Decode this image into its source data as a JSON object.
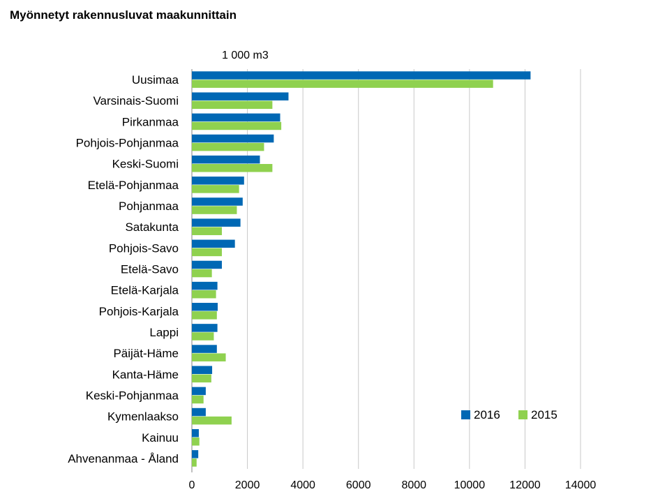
{
  "chart_data": {
    "type": "bar",
    "orientation": "horizontal",
    "title": "Myönnetyt rakennusluvat maakunnittain",
    "unit_label": "1 000 m3",
    "categories": [
      "Uusimaa",
      "Varsinais-Suomi",
      "Pirkanmaa",
      "Pohjois-Pohjanmaa",
      "Keski-Suomi",
      "Etelä-Pohjanmaa",
      "Pohjanmaa",
      "Satakunta",
      "Pohjois-Savo",
      "Etelä-Savo",
      "Etelä-Karjala",
      "Pohjois-Karjala",
      "Lappi",
      "Päijät-Häme",
      "Kanta-Häme",
      "Keski-Pohjanmaa",
      "Kymenlaakso",
      "Kainuu",
      "Ahvenanmaa - Åland"
    ],
    "series": [
      {
        "name": "2016",
        "color": "#0068b4",
        "values": [
          12200,
          3480,
          3180,
          2950,
          2450,
          1880,
          1830,
          1750,
          1550,
          1080,
          920,
          930,
          920,
          900,
          730,
          500,
          500,
          250,
          230
        ]
      },
      {
        "name": "2015",
        "color": "#8fd14f",
        "values": [
          10850,
          2900,
          3220,
          2600,
          2900,
          1700,
          1620,
          1080,
          1080,
          720,
          870,
          900,
          790,
          1220,
          700,
          420,
          1430,
          270,
          170
        ]
      }
    ],
    "xlim": [
      0,
      14000
    ],
    "xticks": [
      0,
      2000,
      4000,
      6000,
      8000,
      10000,
      12000,
      14000
    ],
    "grid": true,
    "legend_position": "bottom-right"
  }
}
